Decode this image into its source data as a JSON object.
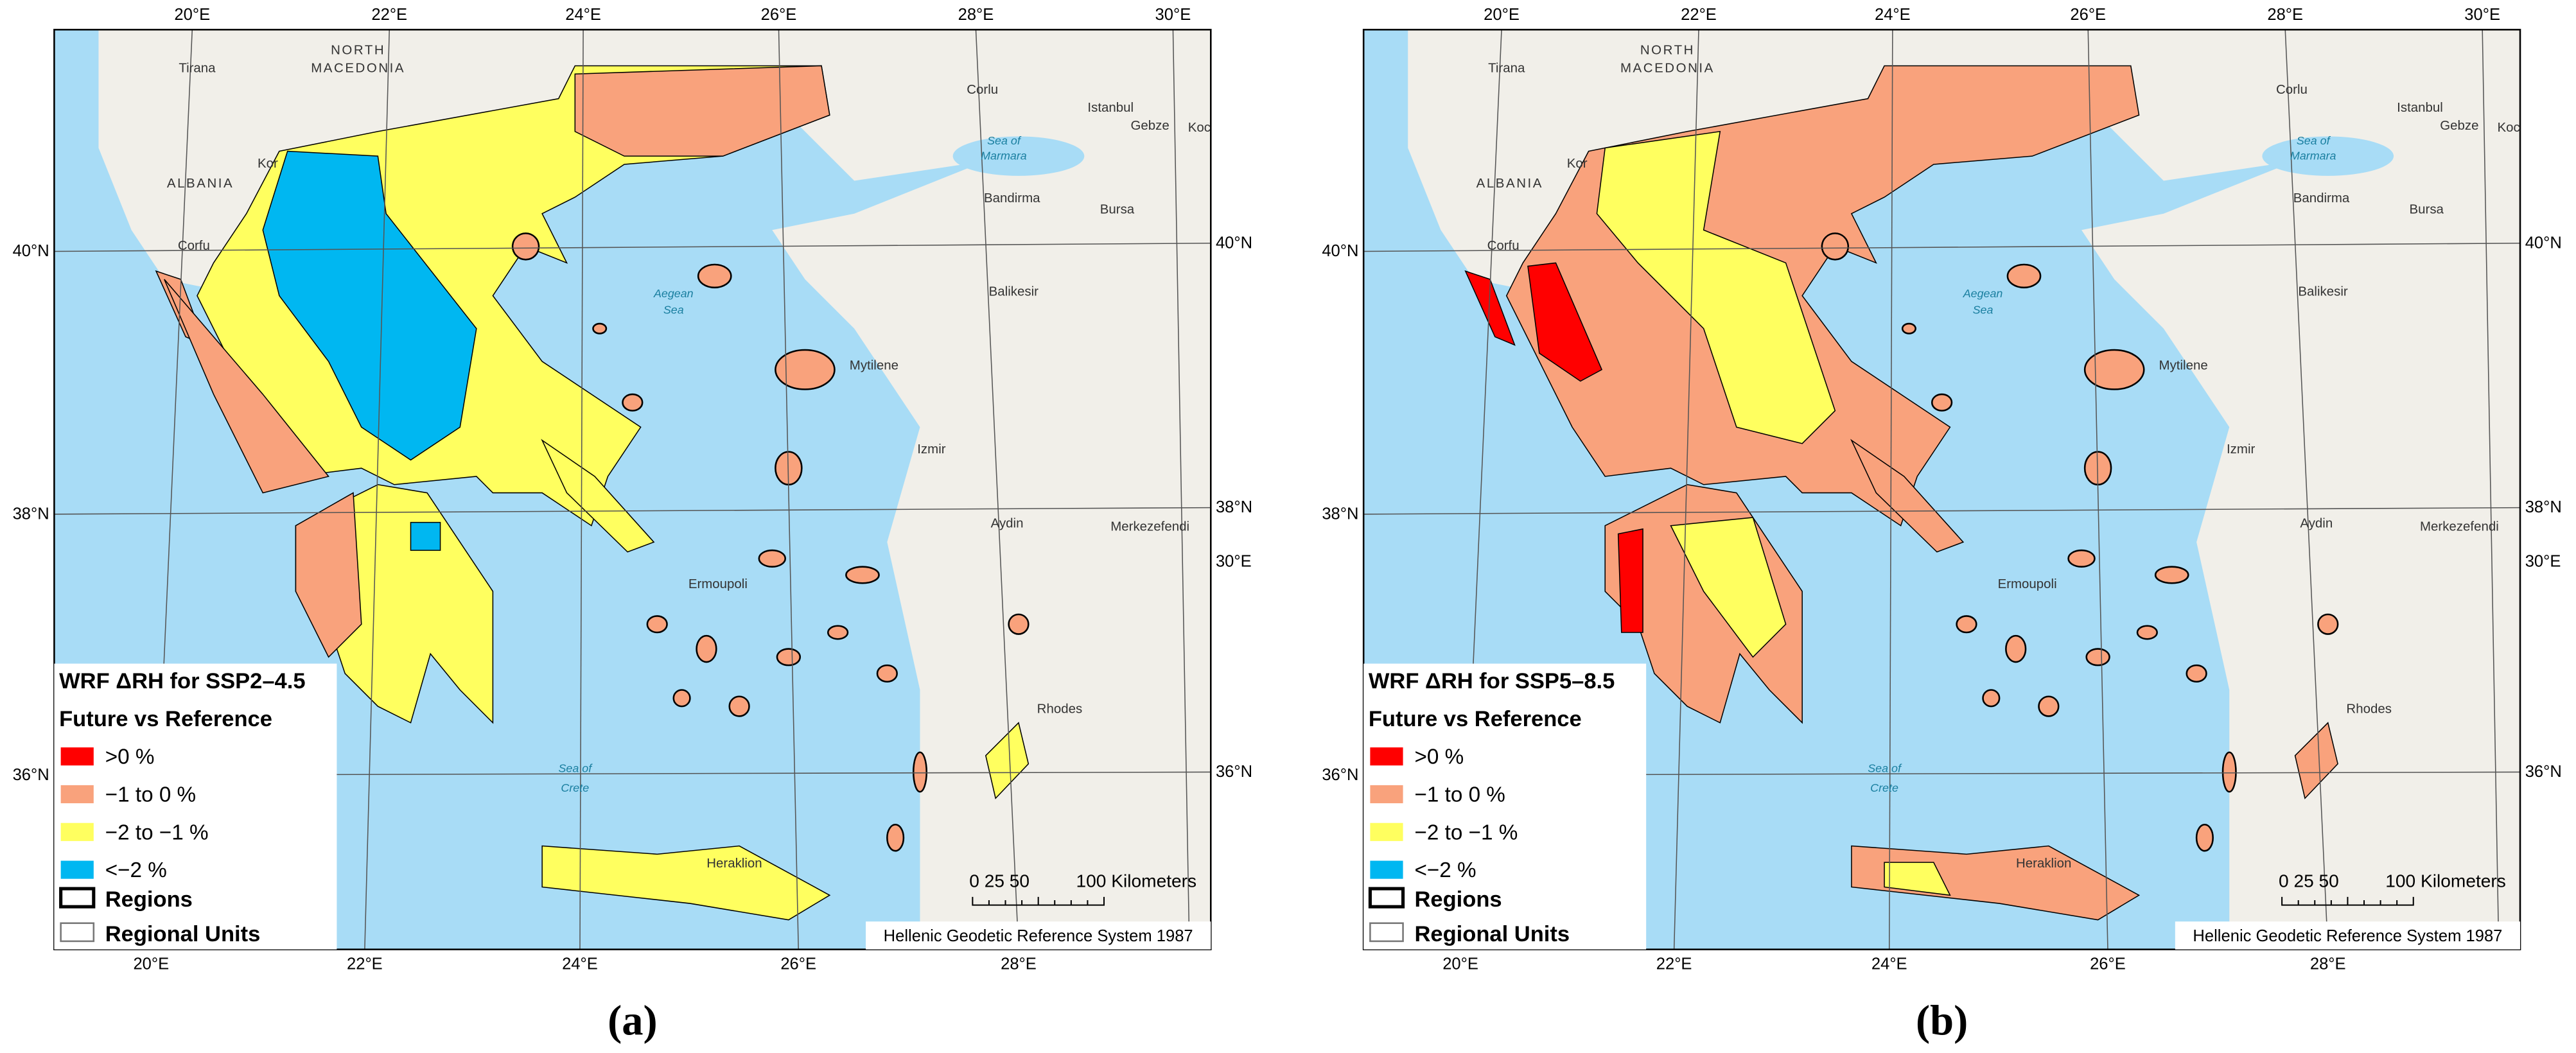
{
  "map": {
    "graticule": {
      "top": [
        "20°E",
        "22°E",
        "24°E",
        "26°E",
        "28°E",
        "30°E"
      ],
      "bottom": [
        "20°E",
        "22°E",
        "24°E",
        "26°E",
        "28°E"
      ],
      "left": [
        "40°N",
        "38°N",
        "36°N"
      ],
      "right": [
        "40°N",
        "38°N",
        "36°N",
        "30°E"
      ]
    },
    "places": [
      "Tirana",
      "NORTH",
      "MACEDONIA",
      "ALBANIA",
      "Kor",
      "Corfu",
      "Corlu",
      "Istanbul",
      "Gebze",
      "Koc",
      "Sea of",
      "Marmara",
      "Bandirma",
      "Bursa",
      "Balikesir",
      "Aegean",
      "Sea",
      "Mytilene",
      "Izmir",
      "Aydin",
      "Merkezefendi",
      "Ermoupoli",
      "Rhodes",
      "Sea of",
      "Crete",
      "Heraklion"
    ],
    "scale_bar": {
      "ticks": "0 25 50",
      "end": "100 Kilometers"
    },
    "attribution": "Hellenic Geodetic Reference System 1987"
  },
  "panels": [
    {
      "legend": {
        "title": "WRF ΔRH for SSP2–4.5",
        "subtitle": "Future vs Reference",
        "items": [
          {
            "label": ">0 %",
            "color": "#ff0000"
          },
          {
            "label": "−1 to 0 %",
            "color": "#f9a27c"
          },
          {
            "label": "−2 to −1 %",
            "color": "#ffff5f"
          },
          {
            "label": "<−2 %",
            "color": "#00b7f1"
          }
        ],
        "boundaries": [
          "Regions",
          "Regional Units"
        ]
      },
      "caption": "(a)"
    },
    {
      "legend": {
        "title": "WRF ΔRH for SSP5–8.5",
        "subtitle": "Future vs Reference",
        "items": [
          {
            "label": ">0 %",
            "color": "#ff0000"
          },
          {
            "label": "−1 to 0 %",
            "color": "#f9a27c"
          },
          {
            "label": "−2 to −1 %",
            "color": "#ffff5f"
          },
          {
            "label": "<−2 %",
            "color": "#00b7f1"
          }
        ],
        "boundaries": [
          "Regions",
          "Regional Units"
        ]
      },
      "caption": "(b)"
    }
  ]
}
